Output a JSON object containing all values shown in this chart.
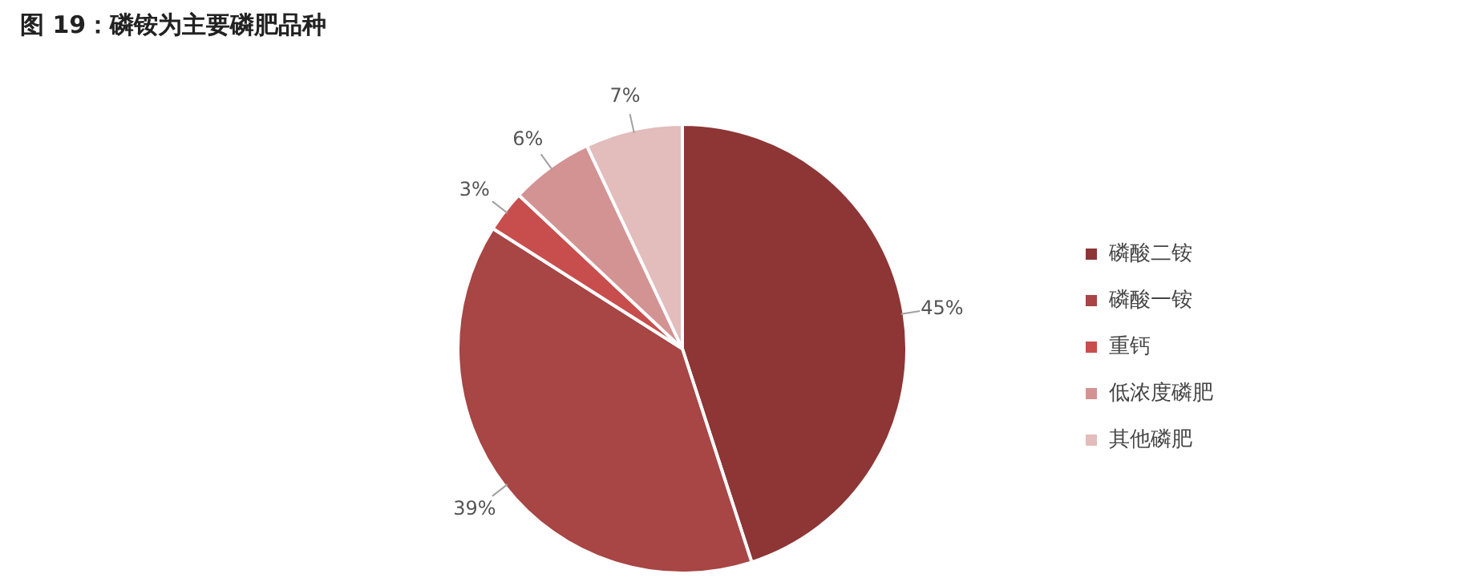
{
  "chart_data": {
    "type": "pie",
    "title": "图 19：磷铵为主要磷肥品种",
    "categories": [
      "磷酸二铵",
      "磷酸一铵",
      "重钙",
      "低浓度磷肥",
      "其他磷肥"
    ],
    "values": [
      45,
      39,
      3,
      6,
      7
    ],
    "colors": [
      "#8e3535",
      "#a84545",
      "#c84e4e",
      "#d49393",
      "#e3bcbc"
    ],
    "value_labels": [
      "45%",
      "39%",
      "3%",
      "6%",
      "7%"
    ],
    "legend": "right"
  }
}
